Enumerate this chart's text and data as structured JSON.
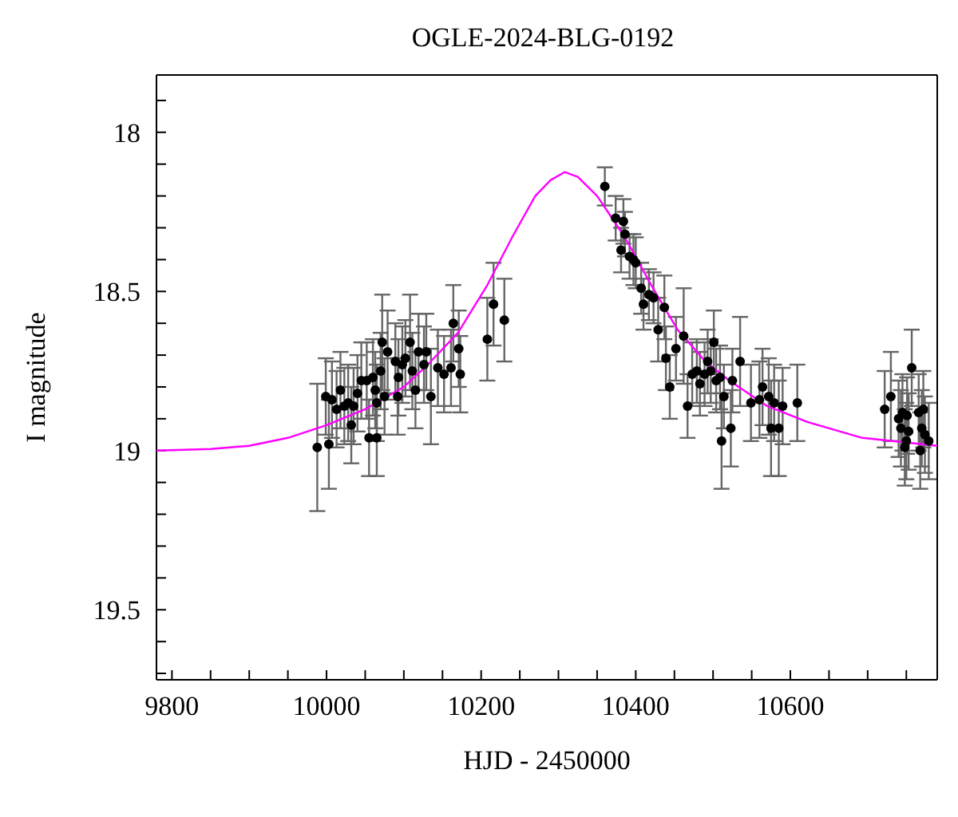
{
  "chart_data": {
    "type": "scatter",
    "title": "OGLE-2024-BLG-0192",
    "xlabel": "HJD - 2450000",
    "ylabel": "I magnitude",
    "xlim": [
      9780,
      10790
    ],
    "ylim": [
      19.72,
      17.82
    ],
    "xticks": [
      {
        "value": 9800,
        "label": "9800"
      },
      {
        "value": 9850,
        "label": null
      },
      {
        "value": 9900,
        "label": null
      },
      {
        "value": 9950,
        "label": null
      },
      {
        "value": 10000,
        "label": "10000"
      },
      {
        "value": 10050,
        "label": null
      },
      {
        "value": 10100,
        "label": null
      },
      {
        "value": 10150,
        "label": null
      },
      {
        "value": 10200,
        "label": "10200"
      },
      {
        "value": 10250,
        "label": null
      },
      {
        "value": 10300,
        "label": null
      },
      {
        "value": 10350,
        "label": null
      },
      {
        "value": 10400,
        "label": "10400"
      },
      {
        "value": 10450,
        "label": null
      },
      {
        "value": 10500,
        "label": null
      },
      {
        "value": 10550,
        "label": null
      },
      {
        "value": 10600,
        "label": "10600"
      },
      {
        "value": 10650,
        "label": null
      },
      {
        "value": 10700,
        "label": null
      },
      {
        "value": 10750,
        "label": null
      }
    ],
    "yticks": [
      {
        "value": 17.9,
        "label": null
      },
      {
        "value": 18,
        "label": "18"
      },
      {
        "value": 18.1,
        "label": null
      },
      {
        "value": 18.2,
        "label": null
      },
      {
        "value": 18.3,
        "label": null
      },
      {
        "value": 18.4,
        "label": null
      },
      {
        "value": 18.5,
        "label": "18.5"
      },
      {
        "value": 18.6,
        "label": null
      },
      {
        "value": 18.7,
        "label": null
      },
      {
        "value": 18.8,
        "label": null
      },
      {
        "value": 18.9,
        "label": null
      },
      {
        "value": 19,
        "label": "19"
      },
      {
        "value": 19.1,
        "label": null
      },
      {
        "value": 19.2,
        "label": null
      },
      {
        "value": 19.3,
        "label": null
      },
      {
        "value": 19.4,
        "label": null
      },
      {
        "value": 19.5,
        "label": "19.5"
      },
      {
        "value": 19.6,
        "label": null
      },
      {
        "value": 19.7,
        "label": null
      }
    ],
    "series": [
      {
        "type": "scatter",
        "color": "#000000",
        "marker": "circle",
        "x": [
          9988,
          9999,
          10003,
          10007,
          10013,
          10018,
          10023,
          10028,
          10032,
          10035,
          10040,
          10045,
          10052,
          10055,
          10060,
          10063,
          10065,
          10065,
          10070,
          10072,
          10075,
          10079,
          10089,
          10092,
          10093,
          10098,
          10102,
          10108,
          10111,
          10115,
          10119,
          10126,
          10129,
          10135,
          10144,
          10152,
          10161,
          10164,
          10171,
          10173,
          10208,
          10216,
          10230,
          10360,
          10374,
          10384,
          10386,
          10381,
          10392,
          10397,
          10400,
          10407,
          10410,
          10417,
          10423,
          10429,
          10437,
          10439,
          10444,
          10452,
          10462,
          10467,
          10473,
          10479,
          10483,
          10489,
          10493,
          10497,
          10501,
          10504,
          10509,
          10511,
          10514,
          10523,
          10525,
          10535,
          10549,
          10560,
          10564,
          10572,
          10575,
          10579,
          10585,
          10590,
          10609,
          10722,
          10730,
          10757,
          10740,
          10745,
          10743,
          10750,
          10748,
          10753,
          10751,
          10766,
          10770,
          10772,
          10774,
          10768,
          10779
        ],
        "values": [
          18.99,
          18.83,
          18.98,
          18.84,
          18.87,
          18.81,
          18.86,
          18.85,
          18.92,
          18.86,
          18.82,
          18.78,
          18.78,
          18.96,
          18.77,
          18.81,
          18.96,
          18.85,
          18.75,
          18.66,
          18.83,
          18.69,
          18.72,
          18.83,
          18.77,
          18.73,
          18.71,
          18.66,
          18.75,
          18.81,
          18.69,
          18.73,
          18.69,
          18.83,
          18.74,
          18.76,
          18.74,
          18.6,
          18.68,
          18.76,
          18.65,
          18.54,
          18.59,
          18.17,
          18.27,
          18.28,
          18.32,
          18.37,
          18.39,
          18.4,
          18.41,
          18.49,
          18.54,
          18.51,
          18.52,
          18.62,
          18.55,
          18.71,
          18.8,
          18.68,
          18.64,
          18.86,
          18.76,
          18.75,
          18.79,
          18.76,
          18.72,
          18.75,
          18.66,
          18.78,
          18.77,
          18.97,
          18.83,
          18.93,
          18.78,
          18.72,
          18.85,
          18.84,
          18.8,
          18.83,
          18.93,
          18.85,
          18.93,
          18.86,
          18.85,
          18.87,
          18.83,
          18.74,
          18.9,
          18.88,
          18.93,
          18.97,
          18.99,
          18.94,
          18.89,
          18.88,
          18.93,
          18.87,
          18.95,
          19.0,
          18.97
        ],
        "errors": [
          0.2,
          0.12,
          0.14,
          0.12,
          0.12,
          0.12,
          0.12,
          0.12,
          0.12,
          0.12,
          0.12,
          0.12,
          0.12,
          0.12,
          0.12,
          0.12,
          0.12,
          0.12,
          0.12,
          0.15,
          0.12,
          0.13,
          0.12,
          0.12,
          0.12,
          0.12,
          0.12,
          0.15,
          0.12,
          0.12,
          0.12,
          0.12,
          0.12,
          0.15,
          0.12,
          0.12,
          0.12,
          0.12,
          0.12,
          0.12,
          0.13,
          0.13,
          0.13,
          0.06,
          0.07,
          0.07,
          0.07,
          0.07,
          0.07,
          0.08,
          0.08,
          0.08,
          0.08,
          0.08,
          0.08,
          0.1,
          0.1,
          0.1,
          0.1,
          0.1,
          0.15,
          0.1,
          0.1,
          0.1,
          0.1,
          0.1,
          0.1,
          0.1,
          0.1,
          0.1,
          0.1,
          0.15,
          0.1,
          0.12,
          0.1,
          0.14,
          0.12,
          0.12,
          0.12,
          0.12,
          0.15,
          0.12,
          0.15,
          0.12,
          0.12,
          0.12,
          0.14,
          0.12,
          0.12,
          0.12,
          0.12,
          0.12,
          0.12,
          0.12,
          0.12,
          0.12,
          0.12,
          0.12,
          0.12,
          0.12,
          0.12
        ]
      },
      {
        "type": "line",
        "color": "#ff00ff",
        "marker": "none",
        "line_style": "solid",
        "x": [
          9780,
          9850,
          9900,
          9950,
          10000,
          10050,
          10100,
          10131,
          10170,
          10208,
          10240,
          10270,
          10290,
          10308,
          10325,
          10350,
          10386,
          10420,
          10454,
          10490,
          10521,
          10570,
          10622,
          10693,
          10790
        ],
        "values": [
          19.0,
          18.995,
          18.985,
          18.96,
          18.92,
          18.87,
          18.8,
          18.73,
          18.63,
          18.48,
          18.33,
          18.2,
          18.15,
          18.125,
          18.14,
          18.2,
          18.33,
          18.48,
          18.62,
          18.72,
          18.78,
          18.86,
          18.91,
          18.96,
          18.985
        ]
      }
    ]
  }
}
